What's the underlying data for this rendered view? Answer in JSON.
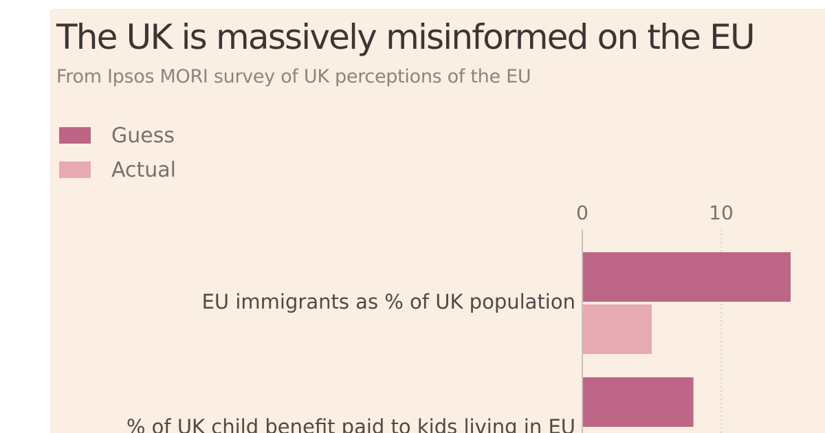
{
  "header": {
    "title": "The UK is massively misinformed on the EU",
    "subtitle": "From Ipsos MORI survey of UK perceptions of the EU"
  },
  "legend": [
    {
      "label": "Guess",
      "color": "#bc6585"
    },
    {
      "label": "Actual",
      "color": "#e7a9b2"
    }
  ],
  "colors": {
    "background": "#fbeee2",
    "axis": "#c8c0ba",
    "grid": "#d2cac4"
  },
  "chart_data": {
    "type": "bar",
    "orientation": "horizontal",
    "title": "The UK is massively misinformed on the EU",
    "subtitle": "From Ipsos MORI survey of UK perceptions of the EU",
    "categories": [
      "EU immigrants as % of UK population",
      "% of UK child benefit paid to kids living in EU"
    ],
    "series": [
      {
        "name": "Guess",
        "color": "#bc6585",
        "values": [
          15,
          8
        ]
      },
      {
        "name": "Actual",
        "color": "#e7a9b2",
        "values": [
          5,
          null
        ]
      }
    ],
    "x_ticks": [
      0,
      10
    ],
    "xlim": [
      0,
      15
    ],
    "grid": "vertical dotted",
    "legend_position": "top-left"
  }
}
